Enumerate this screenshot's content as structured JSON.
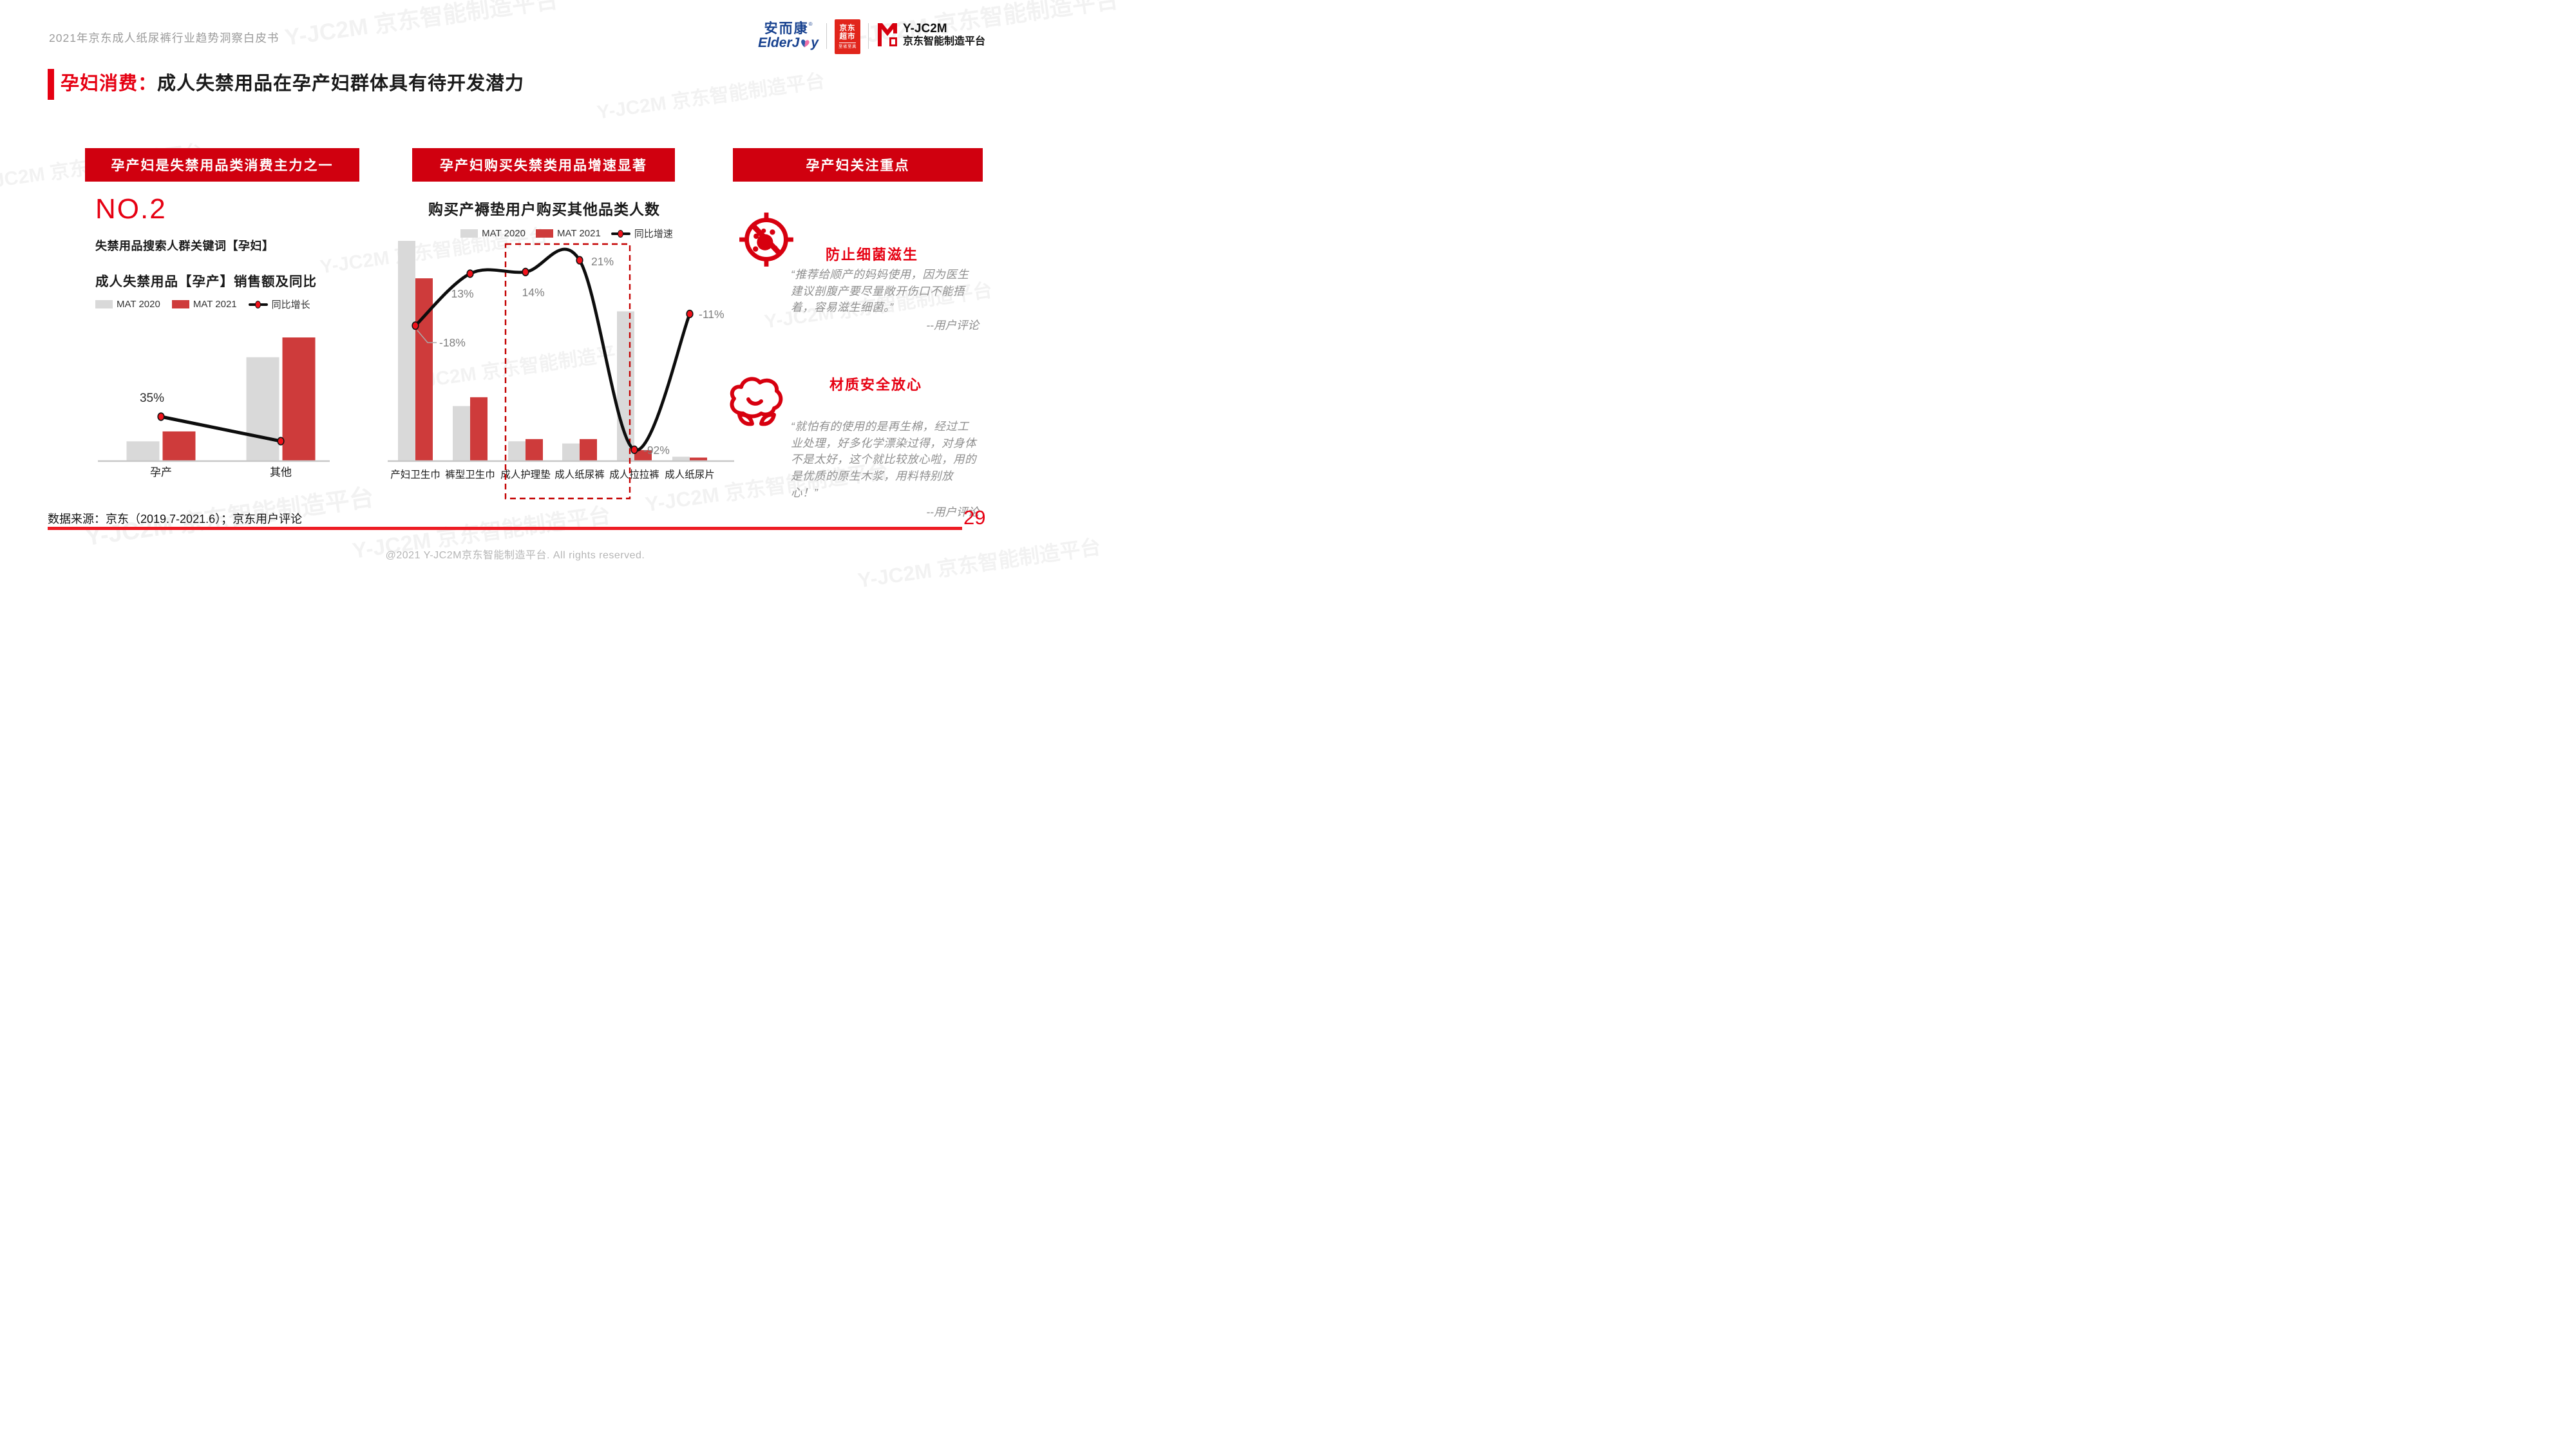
{
  "page": {
    "doc_title": "2021年京东成人纸尿裤行业趋势洞察白皮书",
    "section_label": "孕妇消费：",
    "section_title": "成人失禁用品在孕产妇群体具有待开发潜力",
    "source_note": "数据来源：京东（2019.7-2021.6）；京东用户评论",
    "page_number": "29",
    "footer": "@2021 Y-JC2M京东智能制造平台. All rights reserved.",
    "watermark": "Y-JC2M 京东智能制造平台"
  },
  "logos": {
    "elderjoy_cn": "安而康",
    "elderjoy_reg": "®",
    "elderjoy_en_left": "ElderJ",
    "elderjoy_en_right": "y",
    "jd_market_line1": "京东",
    "jd_market_line2": "超市",
    "jd_market_sub": "至省至真",
    "yjc2m_name": "Y-JC2M",
    "yjc2m_sub": "京东智能制造平台"
  },
  "left": {
    "banner": "孕产妇是失禁用品类消费主力之一",
    "rank": "NO.2",
    "rank_caption": "失禁用品搜索人群关键词【孕妇】"
  },
  "middle": {
    "banner": "孕产妇购买失禁类用品增速显著"
  },
  "right": {
    "banner": "孕产妇关注重点",
    "point1_title": "防止细菌滋生",
    "point1_quote": "“推荐给顺产的妈妈使用，因为医生建议剖腹产要尽量敞开伤口不能捂着，容易滋生细菌。”",
    "point1_source": "--用户评论",
    "point2_title": "材质安全放心",
    "point2_quote": "“就怕有的使用的是再生棉，经过工业处理，好多化学漂染过得，对身体不是太好，这个就比较放心啦，用的是优质的原生木浆，用料特别放心！”",
    "point2_source": "--用户评论"
  },
  "colors": {
    "banner_red": "#D0000F",
    "accent_red": "#E60012",
    "icon_red": "#D7000F",
    "bar_red": "#CE3B3B",
    "bar_gray": "#D9D9D9",
    "line_black": "#0D0D0D",
    "point_red": "#F2121B",
    "value_label_gray": "#7F7F7F",
    "quote_gray": "#8F8F8F",
    "divider_red": "#ED1C24",
    "jd_logo_red": "#E1251B",
    "elderjoy_blue": "#17418F",
    "elderjoy_pink": "#F06FA7"
  },
  "chart_data": [
    {
      "id": "maternity-sales-chart",
      "type": "bar+line",
      "title": "成人失禁用品【孕产】销售额及同比",
      "categories": [
        "孕产",
        "其他"
      ],
      "series": [
        {
          "name": "MAT 2020",
          "color": "#D9D9D9",
          "values_rel": [
            16,
            84
          ]
        },
        {
          "name": "MAT 2021",
          "color": "#CE3B3B",
          "values_rel": [
            24,
            100
          ]
        }
      ],
      "line": {
        "name": "同比增长",
        "labels": [
          "35%",
          null
        ]
      },
      "grid": false,
      "legend_position": "top",
      "note": "bar heights relative, no y-axis shown; only first line point labeled 35%"
    },
    {
      "id": "cross-category-chart",
      "type": "bar+line",
      "title": "购买产褥垫用户购买其他品类人数",
      "categories": [
        "产妇卫生巾",
        "裤型卫生巾",
        "成人护理垫",
        "成人纸尿裤",
        "成人拉拉裤",
        "成人纸尿片"
      ],
      "series": [
        {
          "name": "MAT 2020",
          "color": "#D9D9D9",
          "values_rel": [
            100,
            25,
            9,
            8,
            68,
            2
          ]
        },
        {
          "name": "MAT 2021",
          "color": "#CE3B3B",
          "values_rel": [
            83,
            29,
            10,
            10,
            5,
            1.6
          ]
        }
      ],
      "line": {
        "name": "同比增速",
        "values_pct": [
          -18,
          13,
          14,
          21,
          -92,
          -11
        ],
        "labels": [
          "-18%",
          "13%",
          "14%",
          "21%",
          "-92%",
          "-11%"
        ]
      },
      "highlight_box": {
        "categories": [
          "成人护理垫",
          "成人纸尿裤"
        ],
        "style": "red-dashed"
      },
      "grid": false,
      "legend_position": "top",
      "note": "bar heights relative, no y-axis shown"
    }
  ]
}
